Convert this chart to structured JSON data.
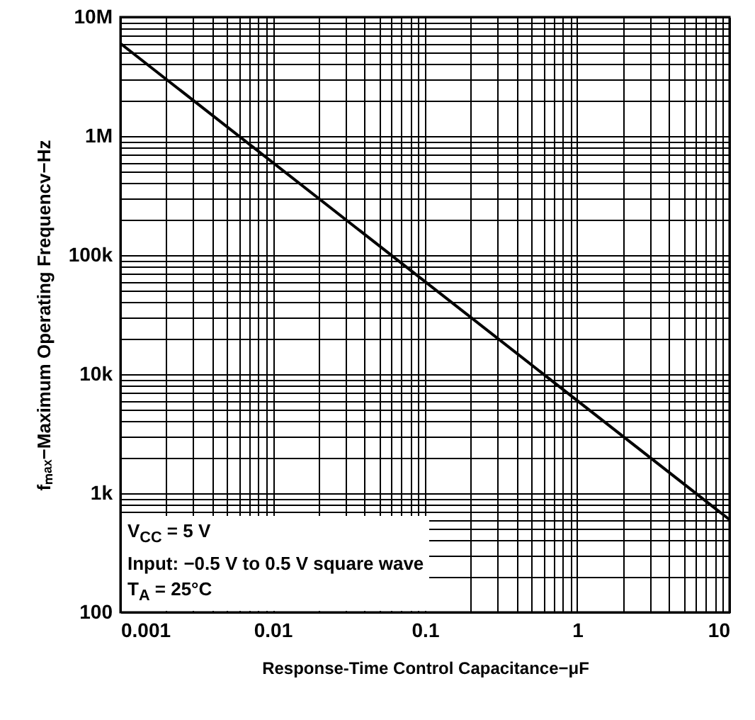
{
  "chart_data": {
    "type": "line",
    "xlabel": "Response-Time Control Capacitance−μF",
    "ylabel": "fₘₐₓ−Maximum Operating Frequencv−Hz",
    "x": [
      0.001,
      10
    ],
    "series": [
      {
        "color": "#000000",
        "values": [
          6000000,
          600
        ]
      }
    ],
    "log": "xy",
    "xlim": [
      0.001,
      10
    ],
    "xticks": [
      0.001,
      0.01,
      0.1,
      1,
      10
    ],
    "ylim": [
      100,
      10000000
    ],
    "yticks": [
      100,
      {
        "value": 1000,
        "label": "1k"
      },
      {
        "value": 10000,
        "label": "10k"
      },
      {
        "value": 100000,
        "label": "100k"
      },
      {
        "value": 1000000,
        "label": "1M"
      },
      {
        "value": 10000000,
        "label": "10M"
      }
    ],
    "grid": true,
    "annotations": [
      "V$_{CC}$ = 5 V",
      "Input:  −0.5 V to 0.5 V square wave",
      "T$_{A}$ = 25°C"
    ]
  }
}
